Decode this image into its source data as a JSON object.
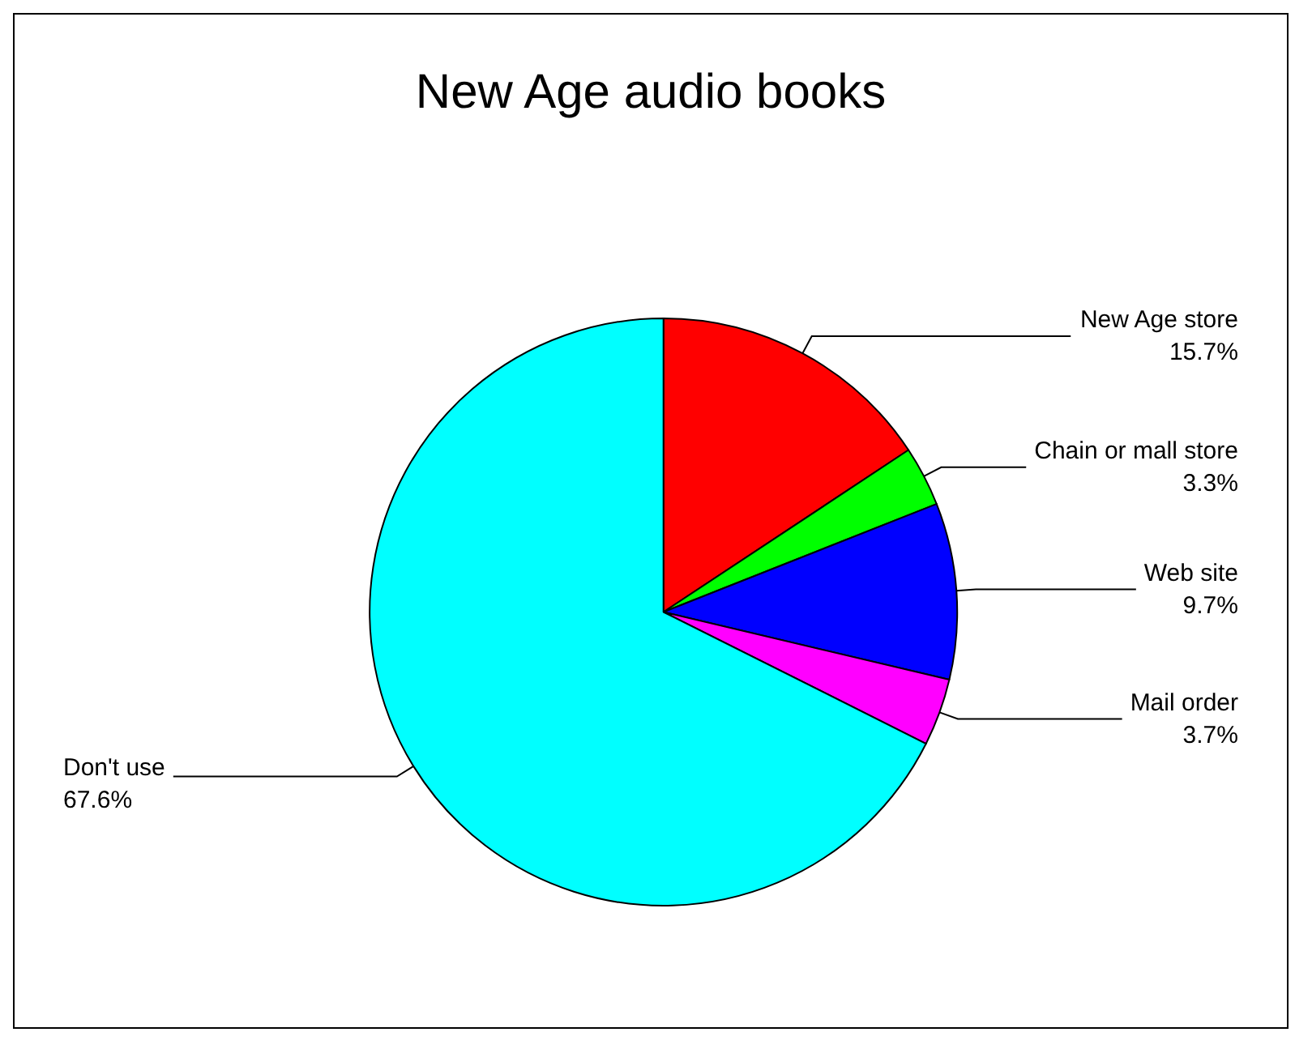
{
  "chart_data": {
    "type": "pie",
    "title": "New Age audio books",
    "categories": [
      "New Age store",
      "Chain or mall store",
      "Web site",
      "Mail order",
      "Don't use"
    ],
    "values": [
      15.7,
      3.3,
      9.7,
      3.7,
      67.6
    ],
    "colors": [
      "#ff0000",
      "#00ff00",
      "#0000ff",
      "#ff00ff",
      "#00ffff"
    ],
    "value_labels": [
      "15.7%",
      "3.3%",
      "9.7%",
      "3.7%",
      "67.6%"
    ],
    "legend": false
  }
}
